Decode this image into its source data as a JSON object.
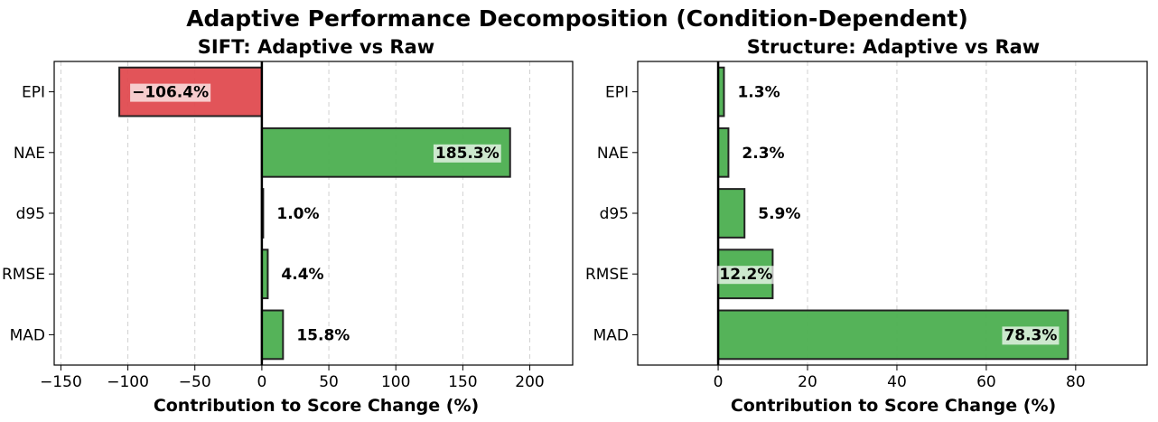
{
  "figure": {
    "suptitle": "Adaptive Performance Decomposition (Condition-Dependent)"
  },
  "colors": {
    "positive": "#4caf50",
    "negative": "#e04b50",
    "bar_edge": "#222222",
    "label_box": "#ffffff"
  },
  "chart_data": [
    {
      "type": "bar",
      "orientation": "horizontal",
      "title": "SIFT: Adaptive vs Raw",
      "xlabel": "Contribution to Score Change (%)",
      "categories": [
        "EPI",
        "NAE",
        "d95",
        "RMSE",
        "MAD"
      ],
      "values": [
        -106.4,
        185.3,
        1.0,
        4.4,
        15.8
      ],
      "data_labels": [
        "−106.4%",
        "185.3%",
        "1.0%",
        "4.4%",
        "15.8%"
      ],
      "xlim": [
        -155,
        232
      ],
      "xticks": [
        -150,
        -100,
        -50,
        0,
        50,
        100,
        150,
        200
      ],
      "grid": "x-dashed"
    },
    {
      "type": "bar",
      "orientation": "horizontal",
      "title": "Structure: Adaptive vs Raw",
      "xlabel": "Contribution to Score Change (%)",
      "categories": [
        "EPI",
        "NAE",
        "d95",
        "RMSE",
        "MAD"
      ],
      "values": [
        1.3,
        2.3,
        5.9,
        12.2,
        78.3
      ],
      "data_labels": [
        "1.3%",
        "2.3%",
        "5.9%",
        "12.2%",
        "78.3%"
      ],
      "xlim": [
        -18,
        96
      ],
      "xticks": [
        0,
        20,
        40,
        60,
        80
      ],
      "grid": "x-dashed"
    }
  ]
}
